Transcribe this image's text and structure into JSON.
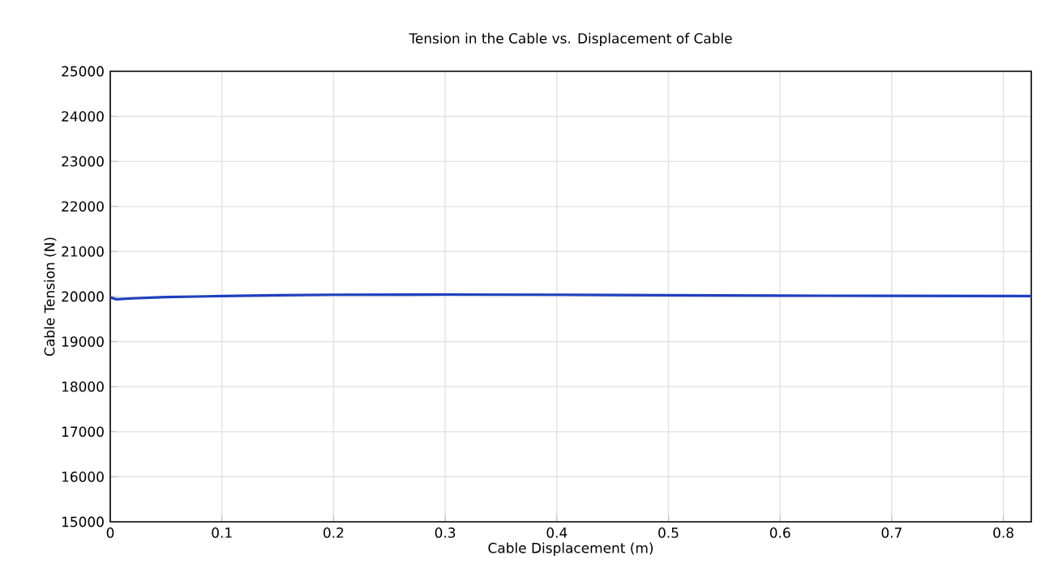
{
  "chart_data": {
    "type": "line",
    "title": "Tension in the Cable vs. Displacement of Cable",
    "xlabel": "Cable Displacement (m)",
    "ylabel": "Cable Tension (N)",
    "x": [
      0,
      0.005,
      0.02,
      0.05,
      0.1,
      0.15,
      0.2,
      0.3,
      0.4,
      0.5,
      0.6,
      0.7,
      0.825
    ],
    "series": [
      {
        "color": "#1f3fbf",
        "values": [
          19980,
          19940,
          19960,
          19990,
          20010,
          20030,
          20040,
          20045,
          20040,
          20030,
          20020,
          20015,
          20010
        ]
      }
    ],
    "xlim": [
      0,
      0.825
    ],
    "ylim": [
      15000,
      25000
    ],
    "xticks": [
      0,
      0.1,
      0.2,
      0.3,
      0.4,
      0.5,
      0.6,
      0.7,
      0.8
    ],
    "yticks": [
      15000,
      16000,
      17000,
      18000,
      19000,
      20000,
      21000,
      22000,
      23000,
      24000,
      25000
    ],
    "grid": true,
    "line_style": "solid",
    "marker": "none"
  }
}
